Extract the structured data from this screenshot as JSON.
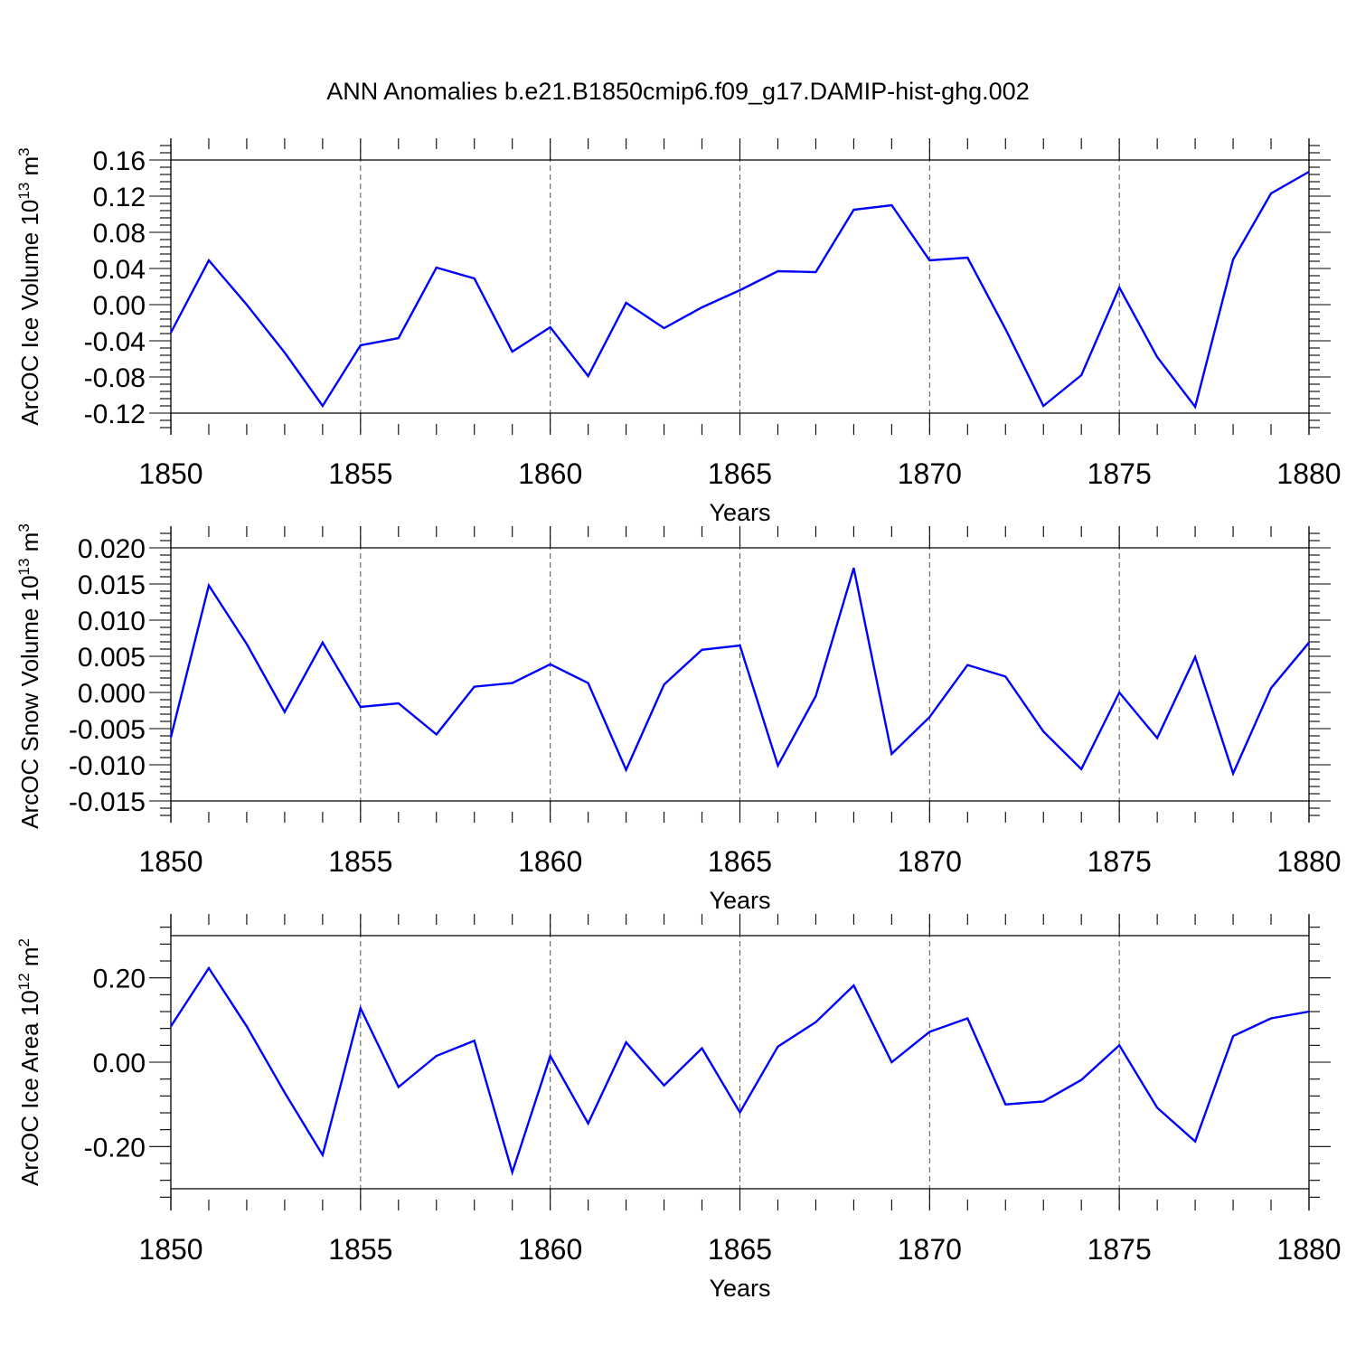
{
  "figure_title": "ANN Anomalies b.e21.B1850cmip6.f09_g17.DAMIP-hist-ghg.002",
  "colors": {
    "line": "#0000ff",
    "axes": "#000000",
    "grid": "#555555"
  },
  "chart_data": [
    {
      "type": "line",
      "title": "ANN Anomalies b.e21.B1850cmip6.f09_g17.DAMIP-hist-ghg.002",
      "ylabel_main": "ArcOC Ice Volume 10",
      "ylabel_exp": "13",
      "ylabel_unit": "m",
      "ylabel_unit_exp": "3",
      "xlabel": "Years",
      "xlim": [
        1850,
        1880
      ],
      "ylim": [
        -0.12,
        0.16
      ],
      "xticks": [
        1850,
        1855,
        1860,
        1865,
        1870,
        1875,
        1880
      ],
      "xtick_labels": [
        "1850",
        "1855",
        "1860",
        "1865",
        "1870",
        "1875",
        "1880"
      ],
      "yticks": [
        -0.12,
        -0.08,
        -0.04,
        0.0,
        0.04,
        0.08,
        0.12,
        0.16
      ],
      "ytick_labels": [
        "-0.12",
        "-0.08",
        "-0.04",
        "0.00",
        "0.04",
        "0.08",
        "0.12",
        "0.16"
      ],
      "x": [
        1850,
        1851,
        1852,
        1853,
        1854,
        1855,
        1856,
        1857,
        1858,
        1859,
        1860,
        1861,
        1862,
        1863,
        1864,
        1865,
        1866,
        1867,
        1868,
        1869,
        1870,
        1871,
        1872,
        1873,
        1874,
        1875,
        1876,
        1877,
        1878,
        1879,
        1880
      ],
      "series": [
        {
          "name": "ArcOC Ice Volume",
          "values": [
            -0.031,
            0.049,
            0.0,
            -0.053,
            -0.112,
            -0.045,
            -0.037,
            0.041,
            0.029,
            -0.052,
            -0.025,
            -0.079,
            0.002,
            -0.026,
            -0.003,
            0.016,
            0.037,
            0.036,
            0.105,
            0.11,
            0.049,
            0.052,
            -0.027,
            -0.112,
            -0.078,
            0.019,
            -0.058,
            -0.113,
            0.05,
            0.123,
            0.147
          ]
        }
      ]
    },
    {
      "type": "line",
      "ylabel_main": "ArcOC Snow Volume 10",
      "ylabel_exp": "13",
      "ylabel_unit": "m",
      "ylabel_unit_exp": "3",
      "xlabel": "Years",
      "xlim": [
        1850,
        1880
      ],
      "ylim": [
        -0.015,
        0.02
      ],
      "xticks": [
        1850,
        1855,
        1860,
        1865,
        1870,
        1875,
        1880
      ],
      "xtick_labels": [
        "1850",
        "1855",
        "1860",
        "1865",
        "1870",
        "1875",
        "1880"
      ],
      "yticks": [
        -0.015,
        -0.01,
        -0.005,
        0.0,
        0.005,
        0.01,
        0.015,
        0.02
      ],
      "ytick_labels": [
        "-0.015",
        "-0.010",
        "-0.005",
        "0.000",
        "0.005",
        "0.010",
        "0.015",
        "0.020"
      ],
      "x": [
        1850,
        1851,
        1852,
        1853,
        1854,
        1855,
        1856,
        1857,
        1858,
        1859,
        1860,
        1861,
        1862,
        1863,
        1864,
        1865,
        1866,
        1867,
        1868,
        1869,
        1870,
        1871,
        1872,
        1873,
        1874,
        1875,
        1876,
        1877,
        1878,
        1879,
        1880
      ],
      "series": [
        {
          "name": "ArcOC Snow Volume",
          "values": [
            -0.0062,
            0.0148,
            0.0067,
            -0.0027,
            0.0069,
            -0.002,
            -0.0015,
            -0.0058,
            0.0008,
            0.0013,
            0.0039,
            0.0013,
            -0.0107,
            0.0011,
            0.0059,
            0.0065,
            -0.0101,
            -0.0005,
            0.0172,
            -0.0085,
            -0.0034,
            0.0038,
            0.0022,
            -0.0054,
            -0.0106,
            0.0,
            -0.0063,
            0.0049,
            -0.0112,
            0.0006,
            0.0069
          ]
        }
      ]
    },
    {
      "type": "line",
      "ylabel_main": "ArcOC Ice Area 10",
      "ylabel_exp": "12",
      "ylabel_unit": "m",
      "ylabel_unit_exp": "2",
      "xlabel": "Years",
      "xlim": [
        1850,
        1880
      ],
      "ylim": [
        -0.3,
        0.3
      ],
      "xticks": [
        1850,
        1855,
        1860,
        1865,
        1870,
        1875,
        1880
      ],
      "xtick_labels": [
        "1850",
        "1855",
        "1860",
        "1865",
        "1870",
        "1875",
        "1880"
      ],
      "yticks": [
        -0.2,
        0.0,
        0.2
      ],
      "ytick_labels": [
        "-0.20",
        "0.00",
        "0.20"
      ],
      "x": [
        1850,
        1851,
        1852,
        1853,
        1854,
        1855,
        1856,
        1857,
        1858,
        1859,
        1860,
        1861,
        1862,
        1863,
        1864,
        1865,
        1866,
        1867,
        1868,
        1869,
        1870,
        1871,
        1872,
        1873,
        1874,
        1875,
        1876,
        1877,
        1878,
        1879,
        1880
      ],
      "series": [
        {
          "name": "ArcOC Ice Area",
          "values": [
            0.085,
            0.223,
            0.085,
            -0.072,
            -0.22,
            0.128,
            -0.059,
            0.015,
            0.051,
            -0.261,
            0.015,
            -0.145,
            0.047,
            -0.055,
            0.033,
            -0.119,
            0.037,
            0.095,
            0.182,
            0.0,
            0.072,
            0.104,
            -0.1,
            -0.093,
            -0.042,
            0.04,
            -0.108,
            -0.188,
            0.062,
            0.104,
            0.12
          ]
        }
      ]
    }
  ]
}
